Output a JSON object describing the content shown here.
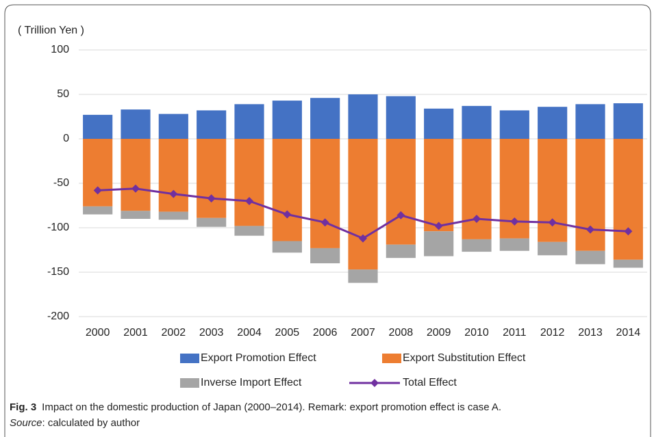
{
  "chart_data": {
    "type": "bar",
    "stacked": true,
    "y_label": "( Trillion Yen )",
    "categories": [
      "2000",
      "2001",
      "2002",
      "2003",
      "2004",
      "2005",
      "2006",
      "2007",
      "2008",
      "2009",
      "2010",
      "2011",
      "2012",
      "2013",
      "2014"
    ],
    "series": [
      {
        "name": "Export Promotion Effect",
        "color": "#4472c4",
        "values": [
          27,
          33,
          28,
          32,
          39,
          43,
          46,
          50,
          48,
          34,
          37,
          32,
          36,
          39,
          40
        ]
      },
      {
        "name": "Export Substitution Effect",
        "color": "#ed7d31",
        "values": [
          -76,
          -81,
          -82,
          -89,
          -98,
          -115,
          -123,
          -147,
          -119,
          -104,
          -113,
          -112,
          -116,
          -126,
          -136
        ]
      },
      {
        "name": "Inverse Import Effect",
        "color": "#a5a5a5",
        "values": [
          -9,
          -9,
          -9,
          -10,
          -11,
          -13,
          -17,
          -15,
          -15,
          -28,
          -14,
          -14,
          -15,
          -15,
          -9
        ]
      },
      {
        "name": "Total Effect",
        "color": "#7030a0",
        "type": "line",
        "marker": "diamond",
        "values": [
          -58,
          -56,
          -62,
          -67,
          -70,
          -85,
          -94,
          -112,
          -86,
          -98,
          -90,
          -93,
          -94,
          -102,
          -104
        ]
      }
    ],
    "ylim": [
      -200,
      100
    ],
    "yticks": [
      -200,
      -150,
      -100,
      -50,
      0,
      50,
      100
    ],
    "grid": true,
    "legend": "bottom"
  },
  "caption": {
    "label": "Fig. 3",
    "text": "Impact on the domestic production of Japan (2000–2014). Remark: export promotion effect is case A.",
    "source_label": "Source",
    "source_text": ": calculated by author"
  }
}
